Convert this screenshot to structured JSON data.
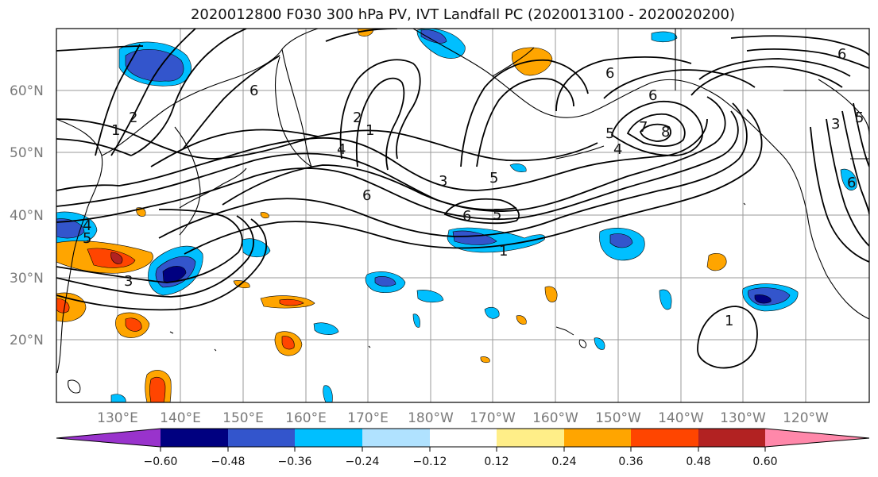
{
  "title": "2020012800 F030 300 hPa PV, IVT Landfall PC (2020013100 - 2020020200)",
  "map": {
    "lat_labels": [
      "60°N",
      "50°N",
      "40°N",
      "30°N",
      "20°N"
    ],
    "lon_labels": [
      "130°E",
      "140°E",
      "150°E",
      "160°E",
      "170°E",
      "180°W",
      "170°W",
      "160°W",
      "150°W",
      "140°W",
      "130°W",
      "120°W"
    ],
    "contour_labels": [
      "1",
      "2",
      "3",
      "4",
      "5",
      "6",
      "7",
      "8"
    ],
    "colors": {
      "land_outline": "#000000",
      "grid": "#9a9a9a",
      "contour": "#000000"
    }
  },
  "colorbar": {
    "colors": [
      "#9933cc",
      "#000080",
      "#3355cc",
      "#00bfff",
      "#b0e2ff",
      "#ffffff",
      "#ffee88",
      "#ffa500",
      "#ff4500",
      "#b22222",
      "#ff88aa"
    ],
    "tick_labels": [
      "−0.60",
      "−0.48",
      "−0.36",
      "−0.24",
      "−0.12",
      "0.12",
      "0.24",
      "0.36",
      "0.48",
      "0.60"
    ]
  }
}
